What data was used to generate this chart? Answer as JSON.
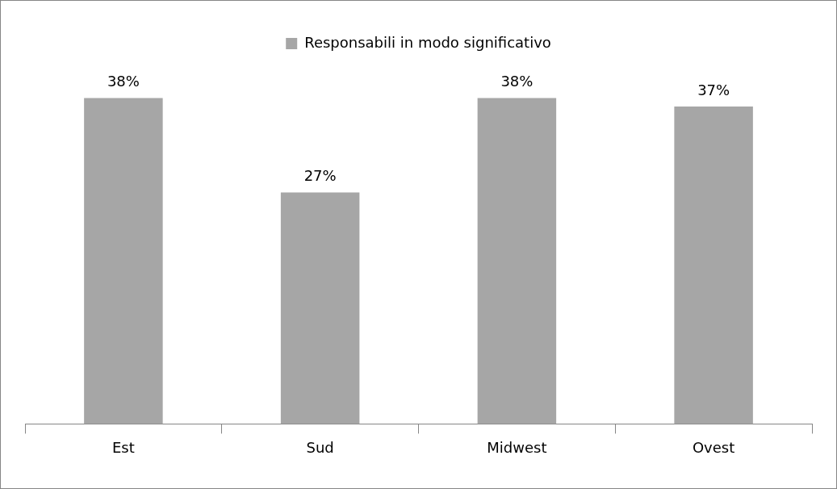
{
  "chart_data": {
    "type": "bar",
    "categories": [
      "Est",
      "Sud",
      "Midwest",
      "Ovest"
    ],
    "series": [
      {
        "name": "Responsabili in modo significativo",
        "color": "#a6a6a6",
        "values": [
          38,
          27,
          38,
          37
        ],
        "value_labels": [
          "38%",
          "27%",
          "38%",
          "37%"
        ]
      }
    ],
    "legend": "top",
    "grid": false
  }
}
